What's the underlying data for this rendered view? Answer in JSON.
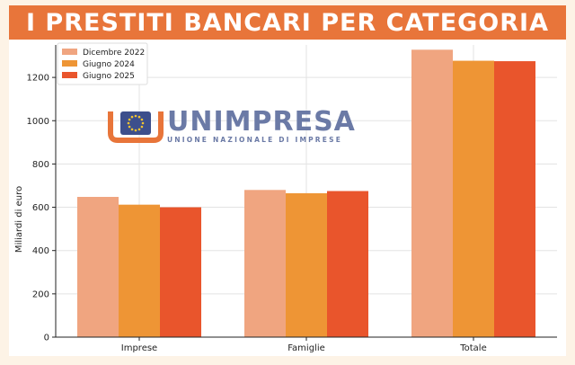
{
  "title": "I PRESTITI BANCARI PER CATEGORIA",
  "logo": {
    "name": "UNIMPRESA",
    "tagline": "UNIONE NAZIONALE DI IMPRESE"
  },
  "colors": {
    "banner": "#e8753a",
    "background": "#fdf3e6",
    "series": [
      "#f0a580",
      "#ee9535",
      "#e9552c"
    ]
  },
  "chart_data": {
    "type": "bar",
    "categories": [
      "Imprese",
      "Famiglie",
      "Totale"
    ],
    "series": [
      {
        "name": "Dicembre 2022",
        "values": [
          648,
          680,
          1328
        ]
      },
      {
        "name": "Giugno 2024",
        "values": [
          612,
          665,
          1277
        ]
      },
      {
        "name": "Giugno 2025",
        "values": [
          600,
          675,
          1275
        ]
      }
    ],
    "ylabel": "Miliardi di euro",
    "xlabel": "",
    "ylim": [
      0,
      1350
    ],
    "yticks": [
      0,
      200,
      400,
      600,
      800,
      1000,
      1200
    ],
    "grid": true,
    "legend_position": "top-left"
  }
}
